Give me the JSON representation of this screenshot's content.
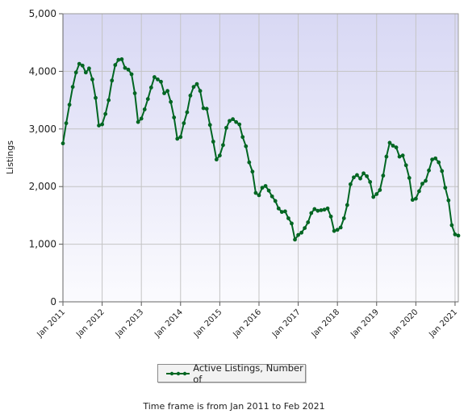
{
  "chart_data": {
    "type": "line",
    "ylabel": "Listings",
    "yticks": [
      "0",
      "1,000",
      "2,000",
      "3,000",
      "4,000",
      "5,000"
    ],
    "ylim": [
      0,
      5000
    ],
    "xticks": [
      "Jan 2011",
      "Jan 2012",
      "Jan 2013",
      "Jan 2014",
      "Jan 2015",
      "Jan 2016",
      "Jan 2017",
      "Jan 2018",
      "Jan 2019",
      "Jan 2020",
      "Jan 2021"
    ],
    "x_start": "Jan 2011",
    "x_end": "Feb 2021",
    "grid": true,
    "legend_position": "bottom",
    "series": [
      {
        "name": "Active Listings, Number of",
        "color": "#006622",
        "values": [
          2750,
          3100,
          3420,
          3730,
          3980,
          4130,
          4100,
          3980,
          4050,
          3860,
          3540,
          3060,
          3080,
          3260,
          3500,
          3840,
          4110,
          4200,
          4210,
          4060,
          4030,
          3950,
          3620,
          3120,
          3180,
          3340,
          3520,
          3720,
          3900,
          3860,
          3820,
          3620,
          3660,
          3470,
          3200,
          2830,
          2860,
          3100,
          3290,
          3580,
          3730,
          3780,
          3660,
          3360,
          3350,
          3070,
          2780,
          2470,
          2540,
          2720,
          3020,
          3140,
          3170,
          3120,
          3080,
          2860,
          2700,
          2420,
          2260,
          1890,
          1850,
          1980,
          2010,
          1930,
          1830,
          1750,
          1620,
          1560,
          1570,
          1450,
          1360,
          1080,
          1160,
          1200,
          1280,
          1380,
          1540,
          1610,
          1580,
          1590,
          1600,
          1620,
          1480,
          1230,
          1250,
          1290,
          1450,
          1680,
          2040,
          2160,
          2200,
          2140,
          2230,
          2180,
          2080,
          1820,
          1870,
          1940,
          2190,
          2520,
          2760,
          2710,
          2680,
          2520,
          2540,
          2370,
          2150,
          1770,
          1790,
          1920,
          2050,
          2100,
          2280,
          2470,
          2490,
          2420,
          2270,
          1980,
          1760,
          1330,
          1170,
          1150
        ]
      }
    ]
  },
  "legend": {
    "label": "Active Listings, Number of"
  },
  "footer": {
    "note": "Time frame is from Jan 2011 to Feb 2021"
  }
}
